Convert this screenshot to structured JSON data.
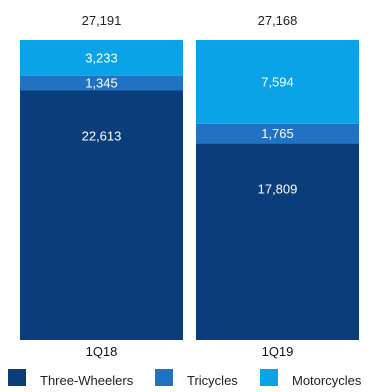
{
  "chart_data": {
    "type": "bar",
    "stacked": true,
    "categories": [
      "1Q18",
      "1Q19"
    ],
    "totals": [
      "27,191",
      "27,168"
    ],
    "series": [
      {
        "name": "Three-Wheelers",
        "color": "#0a3d7a",
        "values": [
          22613,
          17809
        ],
        "labels": [
          "22,613",
          "17,809"
        ]
      },
      {
        "name": "Tricycles",
        "color": "#2272c3",
        "values": [
          1345,
          1765
        ],
        "labels": [
          "1,345",
          "1,765"
        ]
      },
      {
        "name": "Motorcycles",
        "color": "#0aa3e8",
        "values": [
          3233,
          7594
        ],
        "labels": [
          "3,233",
          "7,594"
        ]
      }
    ],
    "legend_position": "bottom"
  }
}
